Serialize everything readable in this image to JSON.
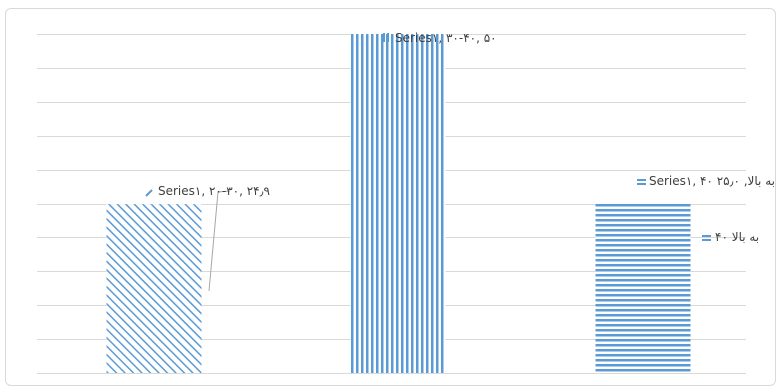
{
  "chart_data": {
    "type": "bar",
    "categories": [
      "۲۰-۳۰",
      "۳۰-۴۰",
      "۴۰ به بالا"
    ],
    "series": [
      {
        "values": [
          24.9,
          50,
          25
        ]
      }
    ],
    "ylim": [
      0,
      50
    ],
    "grid": true,
    "data_labels": [
      {
        "text": "Series۱, ۲۰-۳۰, ۲۴٫۹"
      },
      {
        "text": "Series۱, ۳۰-۴۰, ۵۰"
      },
      {
        "text": "Series۱, ۴۰ به بالا, ۲۵٫۰"
      }
    ],
    "legend_entries": [
      {
        "text": "۴۰ به بالا"
      }
    ],
    "colors": {
      "bar_pattern": "#5b9bd5",
      "gridline": "#d9d9d9",
      "border": "#d9d9d9",
      "leader_line": "#a6a6a6",
      "text": "#404040"
    }
  }
}
